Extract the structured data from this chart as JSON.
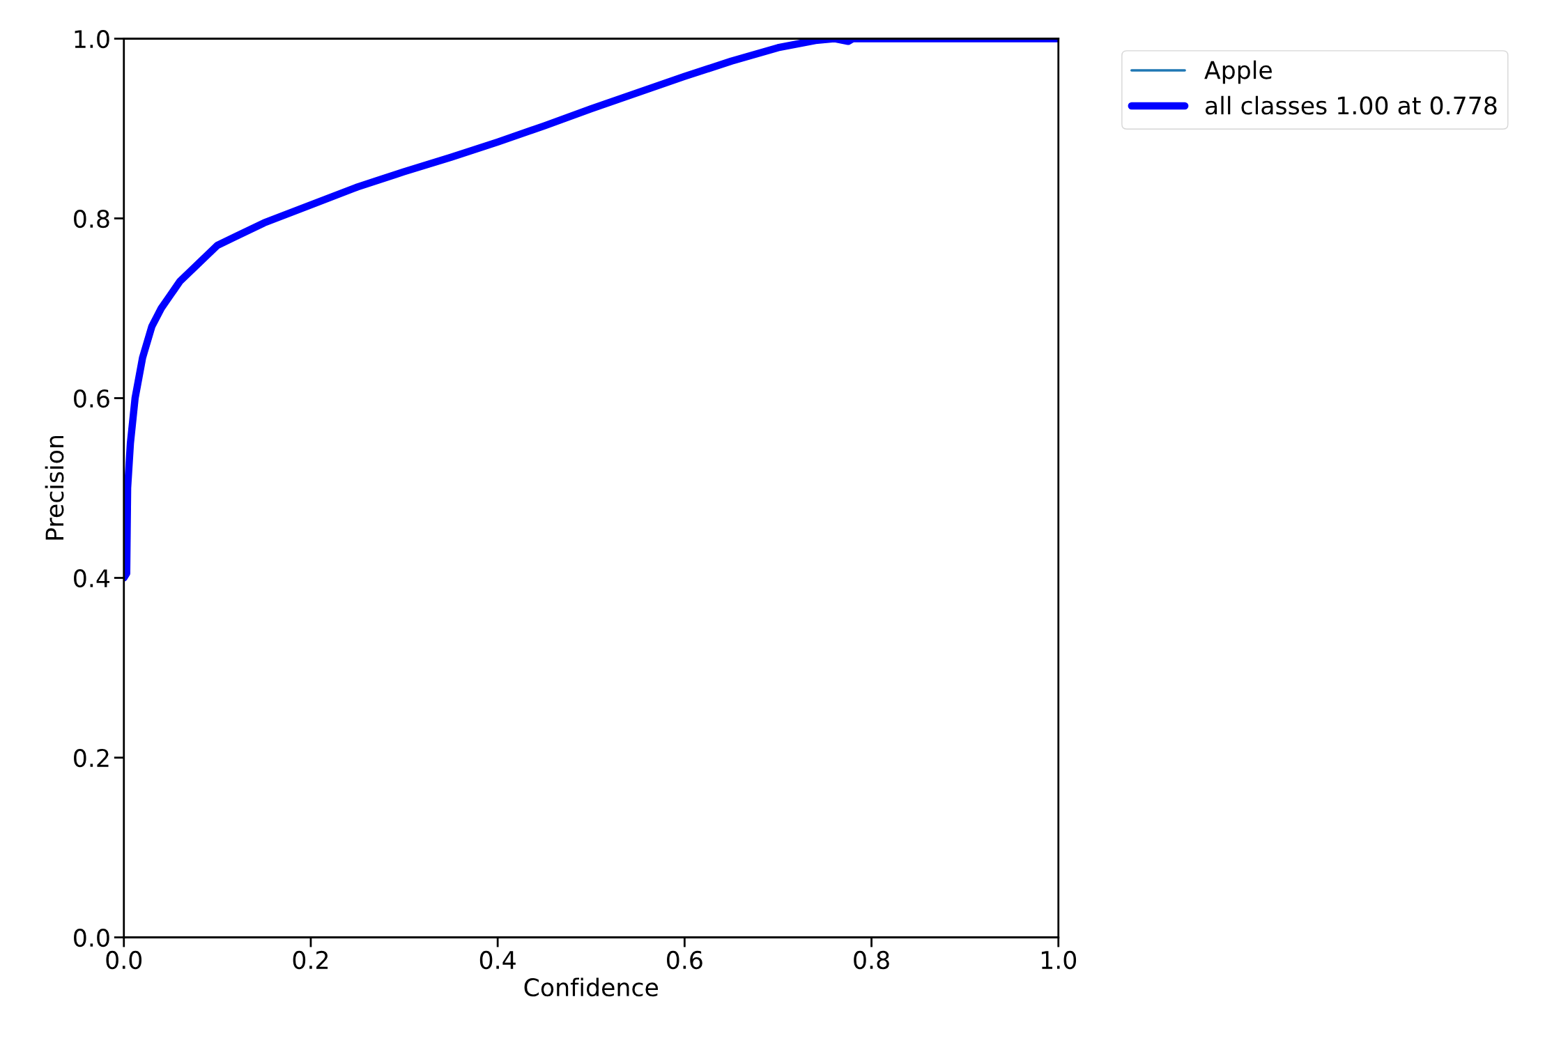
{
  "chart_data": {
    "type": "line",
    "xlabel": "Confidence",
    "ylabel": "Precision",
    "xlim": [
      0,
      1
    ],
    "ylim": [
      0,
      1
    ],
    "xticks": [
      {
        "value": 0,
        "label": "0.0"
      },
      0.2,
      0.4,
      0.6,
      0.8,
      {
        "value": 1,
        "label": "1.0"
      }
    ],
    "yticks": [
      {
        "value": 0,
        "label": "0.0"
      },
      0.2,
      0.4,
      0.6,
      0.8,
      {
        "value": 1,
        "label": "1.0"
      }
    ],
    "grid": false,
    "legend": "top right",
    "marker": "none",
    "line_style": "solid",
    "series": [
      {
        "name": "Apple",
        "color": "#1f77b4"
      },
      {
        "name": "all classes 1.00 at 0.778",
        "color": "#0000ff",
        "x": [
          0,
          0.003,
          0.004,
          0.007,
          0.012,
          0.02,
          0.03,
          0.04,
          0.05,
          0.06,
          0.08,
          0.1,
          0.12,
          0.15,
          0.2,
          0.25,
          0.3,
          0.35,
          0.4,
          0.45,
          0.5,
          0.55,
          0.6,
          0.65,
          0.7,
          0.74,
          0.76,
          0.775,
          0.78,
          1.0
        ],
        "values": [
          0.4,
          0.405,
          0.5,
          0.55,
          0.6,
          0.645,
          0.68,
          0.7,
          0.715,
          0.73,
          0.75,
          0.77,
          0.78,
          0.795,
          0.815,
          0.835,
          0.852,
          0.868,
          0.885,
          0.903,
          0.922,
          0.94,
          0.958,
          0.975,
          0.99,
          0.998,
          1.0,
          0.997,
          1.0,
          1.0
        ]
      }
    ]
  }
}
